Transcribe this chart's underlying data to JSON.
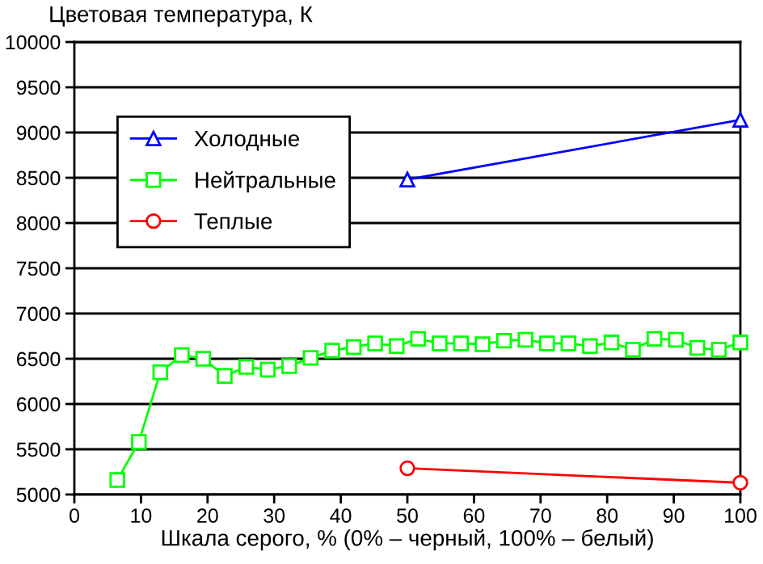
{
  "chart_data": {
    "type": "line",
    "ylabel": "Цветовая температура, К",
    "xlabel": "Шкала серого, % (0% – черный, 100% – белый)",
    "xlim": [
      0,
      100
    ],
    "xticks": [
      0,
      10,
      20,
      30,
      40,
      50,
      60,
      70,
      80,
      90,
      100
    ],
    "ylim": [
      5000,
      10000
    ],
    "yticks": [
      5000,
      5500,
      6000,
      6500,
      7000,
      7500,
      8000,
      8500,
      9000,
      9500,
      10000
    ],
    "grid": "y",
    "legend": "top left",
    "series": [
      {
        "name": "Холодные",
        "color": "#0000ff",
        "marker": "triangle",
        "x": [
          50,
          100
        ],
        "values": [
          8480,
          9140
        ]
      },
      {
        "name": "Нейтральные",
        "color": "#00ff00",
        "marker": "square",
        "x": [
          6.45,
          9.68,
          12.9,
          16.13,
          19.35,
          22.58,
          25.81,
          29.03,
          32.26,
          35.48,
          38.71,
          41.94,
          45.16,
          48.39,
          51.61,
          54.84,
          58.06,
          61.29,
          64.52,
          67.74,
          70.97,
          74.19,
          77.42,
          80.65,
          83.87,
          87.1,
          90.32,
          93.55,
          96.77,
          100
        ],
        "values": [
          5160,
          5580,
          6350,
          6540,
          6500,
          6310,
          6410,
          6380,
          6420,
          6510,
          6590,
          6630,
          6670,
          6640,
          6720,
          6670,
          6670,
          6660,
          6700,
          6710,
          6670,
          6670,
          6640,
          6680,
          6600,
          6720,
          6710,
          6620,
          6600,
          6680
        ]
      },
      {
        "name": "Теплые",
        "color": "#ff0000",
        "marker": "circle",
        "x": [
          50,
          100
        ],
        "values": [
          5290,
          5130
        ]
      }
    ]
  }
}
